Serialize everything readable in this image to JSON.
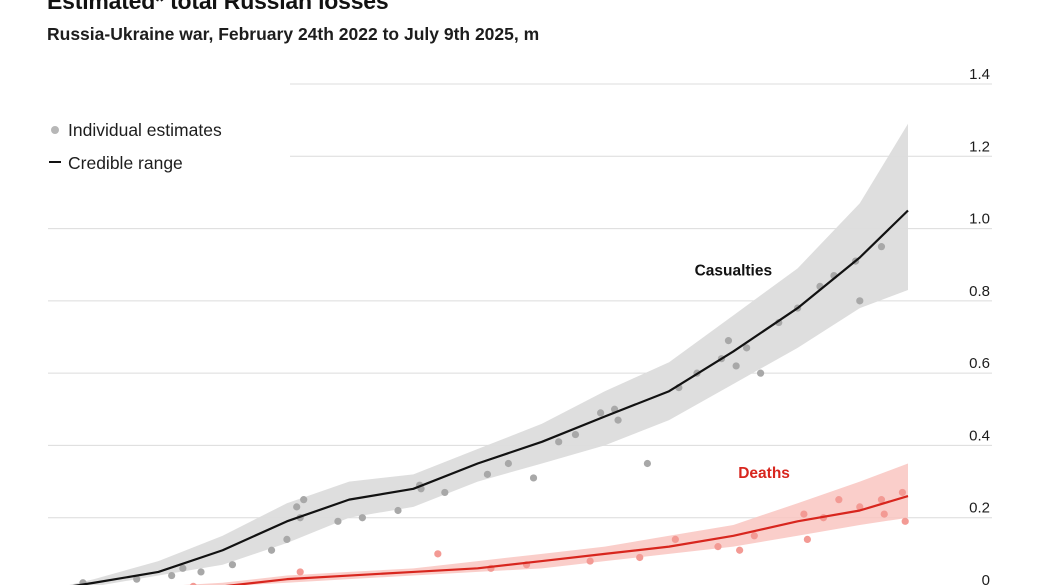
{
  "title": "Estimated* total Russian losses",
  "subtitle": "Russia-Ukraine war, February 24th 2022 to July 9th 2025, m",
  "colors": {
    "casualties_line": "#121212",
    "casualties_band": "#dcdcdc",
    "casualties_points": "#a8a8a8",
    "deaths_line": "#d8261e",
    "deaths_band": "#f9c6c1",
    "deaths_points": "#f39a94",
    "grid": "#dcdcdc",
    "deaths_label": "#d8261e"
  },
  "legend": {
    "estimates_label": "Individual estimates",
    "range_label": "Credible range"
  },
  "chart_data": {
    "type": "line",
    "title": "Estimated* total Russian losses",
    "subtitle": "Russia-Ukraine war, February 24th 2022 to July 9th 2025, m",
    "x_range": [
      "2022-02-24",
      "2025-07-09"
    ],
    "ylim": [
      0,
      1.4
    ],
    "y_ticks": [
      "0",
      "0.2",
      "0.4",
      "0.6",
      "0.8",
      "1.0",
      "1.2",
      "1.4"
    ],
    "grid": true,
    "legend_position": "top-left",
    "series": [
      {
        "name": "Casualties",
        "x": [
          "2022-02-24",
          "2022-05-01",
          "2022-08-01",
          "2022-11-01",
          "2023-02-01",
          "2023-05-01",
          "2023-08-01",
          "2023-11-01",
          "2024-02-01",
          "2024-05-01",
          "2024-08-01",
          "2024-11-01",
          "2025-02-01",
          "2025-05-01",
          "2025-07-09"
        ],
        "values": [
          0.0,
          0.02,
          0.05,
          0.11,
          0.19,
          0.25,
          0.28,
          0.35,
          0.41,
          0.48,
          0.55,
          0.66,
          0.78,
          0.92,
          1.05
        ],
        "lower": [
          0.0,
          0.01,
          0.04,
          0.07,
          0.13,
          0.2,
          0.23,
          0.3,
          0.35,
          0.4,
          0.47,
          0.57,
          0.67,
          0.78,
          0.83
        ],
        "upper": [
          0.0,
          0.03,
          0.08,
          0.15,
          0.24,
          0.3,
          0.32,
          0.39,
          0.46,
          0.55,
          0.63,
          0.76,
          0.89,
          1.07,
          1.29
        ]
      },
      {
        "name": "Deaths",
        "x": [
          "2022-02-24",
          "2022-05-01",
          "2022-08-01",
          "2022-11-01",
          "2023-02-01",
          "2023-05-01",
          "2023-08-01",
          "2023-11-01",
          "2024-02-01",
          "2024-05-01",
          "2024-08-01",
          "2024-11-01",
          "2025-02-01",
          "2025-05-01",
          "2025-07-09"
        ],
        "values": [
          0.0,
          0.0,
          0.0,
          0.01,
          0.03,
          0.04,
          0.05,
          0.06,
          0.08,
          0.1,
          0.12,
          0.15,
          0.19,
          0.22,
          0.26
        ],
        "lower": [
          0.0,
          0.0,
          0.0,
          0.01,
          0.02,
          0.03,
          0.04,
          0.05,
          0.06,
          0.08,
          0.1,
          0.12,
          0.15,
          0.18,
          0.2
        ],
        "upper": [
          0.0,
          0.01,
          0.01,
          0.02,
          0.04,
          0.05,
          0.06,
          0.08,
          0.1,
          0.12,
          0.15,
          0.18,
          0.24,
          0.3,
          0.35
        ]
      }
    ],
    "estimates": {
      "casualties": [
        [
          "2022-04-15",
          0.02
        ],
        [
          "2022-07-01",
          0.03
        ],
        [
          "2022-08-20",
          0.04
        ],
        [
          "2022-09-05",
          0.06
        ],
        [
          "2022-10-01",
          0.05
        ],
        [
          "2022-11-15",
          0.07
        ],
        [
          "2023-01-10",
          0.11
        ],
        [
          "2023-02-01",
          0.14
        ],
        [
          "2023-02-15",
          0.23
        ],
        [
          "2023-02-20",
          0.2
        ],
        [
          "2023-02-25",
          0.25
        ],
        [
          "2023-04-15",
          0.19
        ],
        [
          "2023-05-20",
          0.2
        ],
        [
          "2023-07-10",
          0.22
        ],
        [
          "2023-08-10",
          0.29
        ],
        [
          "2023-08-12",
          0.28
        ],
        [
          "2023-09-15",
          0.27
        ],
        [
          "2023-11-15",
          0.32
        ],
        [
          "2023-12-15",
          0.35
        ],
        [
          "2024-01-20",
          0.31
        ],
        [
          "2024-02-25",
          0.41
        ],
        [
          "2024-03-20",
          0.43
        ],
        [
          "2024-04-25",
          0.49
        ],
        [
          "2024-05-15",
          0.5
        ],
        [
          "2024-05-20",
          0.47
        ],
        [
          "2024-07-01",
          0.35
        ],
        [
          "2024-08-15",
          0.56
        ],
        [
          "2024-09-10",
          0.6
        ],
        [
          "2024-10-15",
          0.64
        ],
        [
          "2024-10-25",
          0.69
        ],
        [
          "2024-11-05",
          0.62
        ],
        [
          "2024-11-20",
          0.67
        ],
        [
          "2024-12-10",
          0.6
        ],
        [
          "2025-01-05",
          0.74
        ],
        [
          "2025-02-01",
          0.78
        ],
        [
          "2025-03-05",
          0.84
        ],
        [
          "2025-03-25",
          0.87
        ],
        [
          "2025-04-25",
          0.91
        ],
        [
          "2025-05-01",
          0.8
        ],
        [
          "2025-06-01",
          0.95
        ]
      ],
      "deaths": [
        [
          "2022-05-10",
          0.0
        ],
        [
          "2022-08-20",
          0.0
        ],
        [
          "2022-09-20",
          0.01
        ],
        [
          "2023-02-20",
          0.05
        ],
        [
          "2023-09-05",
          0.1
        ],
        [
          "2023-11-20",
          0.06
        ],
        [
          "2024-01-10",
          0.07
        ],
        [
          "2024-04-10",
          0.08
        ],
        [
          "2024-06-20",
          0.09
        ],
        [
          "2024-08-10",
          0.14
        ],
        [
          "2024-10-10",
          0.12
        ],
        [
          "2024-11-10",
          0.11
        ],
        [
          "2024-12-01",
          0.15
        ],
        [
          "2025-02-10",
          0.21
        ],
        [
          "2025-02-15",
          0.14
        ],
        [
          "2025-03-10",
          0.2
        ],
        [
          "2025-04-01",
          0.25
        ],
        [
          "2025-05-01",
          0.23
        ],
        [
          "2025-06-01",
          0.25
        ],
        [
          "2025-06-05",
          0.21
        ],
        [
          "2025-07-01",
          0.27
        ],
        [
          "2025-07-05",
          0.19
        ]
      ]
    },
    "annotations": [
      {
        "text": "Casualties",
        "x": "2024-11-01",
        "y": 0.87
      },
      {
        "text": "Deaths",
        "x": "2024-12-15",
        "y": 0.31
      }
    ]
  }
}
